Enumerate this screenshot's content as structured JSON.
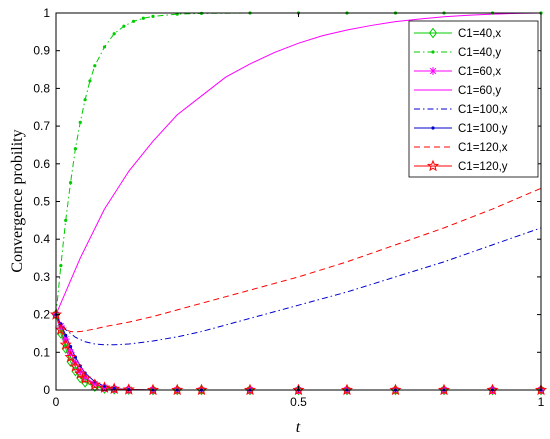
{
  "chart_data": {
    "type": "line",
    "xlabel": "t",
    "ylabel": "Convergence probility",
    "xlim": [
      0,
      1
    ],
    "ylim": [
      0,
      1
    ],
    "xticks": [
      0,
      0.5,
      1
    ],
    "xtick_labels": [
      "0",
      "0.5",
      "1"
    ],
    "yticks": [
      0,
      0.1,
      0.2,
      0.3,
      0.4,
      0.5,
      0.6,
      0.7,
      0.8,
      0.9,
      1
    ],
    "ytick_labels": [
      "0",
      "0.1",
      "0.2",
      "0.3",
      "0.4",
      "0.5",
      "0.6",
      "0.7",
      "0.8",
      "0.9",
      "1"
    ],
    "grid": false,
    "legend_position": "top-right",
    "series": [
      {
        "name": "C1=40,x",
        "color": "#00cc00",
        "dash": "solid",
        "marker": "diamond",
        "x": [
          0,
          0.01,
          0.02,
          0.03,
          0.04,
          0.05,
          0.06,
          0.08,
          0.1,
          0.12,
          0.15,
          0.2,
          0.25,
          0.3,
          0.4,
          0.5,
          0.6,
          0.7,
          0.8,
          0.9,
          1.0
        ],
        "y": [
          0.2,
          0.15,
          0.11,
          0.075,
          0.05,
          0.032,
          0.02,
          0.009,
          0.004,
          0.002,
          0.001,
          0,
          0,
          0,
          0,
          0,
          0,
          0,
          0,
          0,
          0
        ]
      },
      {
        "name": "C1=40,y",
        "color": "#00cc00",
        "dash": "dashdot",
        "marker": "point",
        "x": [
          0,
          0.01,
          0.02,
          0.03,
          0.04,
          0.05,
          0.06,
          0.07,
          0.08,
          0.1,
          0.12,
          0.14,
          0.16,
          0.18,
          0.2,
          0.25,
          0.3,
          0.4,
          0.5,
          0.6,
          0.7,
          0.8,
          0.9,
          1.0
        ],
        "y": [
          0.2,
          0.33,
          0.45,
          0.55,
          0.64,
          0.71,
          0.77,
          0.82,
          0.86,
          0.91,
          0.945,
          0.965,
          0.978,
          0.986,
          0.991,
          0.997,
          0.999,
          1,
          1,
          1,
          1,
          1,
          1,
          1
        ]
      },
      {
        "name": "C1=60,x",
        "color": "#ff00ff",
        "dash": "solid",
        "marker": "asterisk",
        "x": [
          0,
          0.01,
          0.02,
          0.03,
          0.04,
          0.05,
          0.06,
          0.08,
          0.1,
          0.12,
          0.15,
          0.2,
          0.25,
          0.3,
          0.4,
          0.5,
          0.6,
          0.7,
          0.8,
          0.9,
          1.0
        ],
        "y": [
          0.2,
          0.17,
          0.135,
          0.1,
          0.072,
          0.05,
          0.034,
          0.016,
          0.007,
          0.003,
          0.001,
          0,
          0,
          0,
          0,
          0,
          0,
          0,
          0,
          0,
          0
        ]
      },
      {
        "name": "C1=60,y",
        "color": "#ff00ff",
        "dash": "solid",
        "marker": "none",
        "x": [
          0,
          0.02,
          0.05,
          0.1,
          0.15,
          0.2,
          0.25,
          0.3,
          0.35,
          0.4,
          0.45,
          0.5,
          0.55,
          0.6,
          0.65,
          0.7,
          0.75,
          0.8,
          0.85,
          0.9,
          0.95,
          1.0
        ],
        "y": [
          0.2,
          0.26,
          0.35,
          0.48,
          0.58,
          0.66,
          0.73,
          0.78,
          0.83,
          0.865,
          0.895,
          0.92,
          0.94,
          0.955,
          0.967,
          0.977,
          0.984,
          0.99,
          0.994,
          0.997,
          0.999,
          1.0
        ]
      },
      {
        "name": "C1=100,x",
        "color": "#0000cc",
        "dash": "dashdot",
        "marker": "none",
        "x": [
          0,
          0.02,
          0.04,
          0.06,
          0.08,
          0.1,
          0.12,
          0.15,
          0.2,
          0.25,
          0.3,
          0.4,
          0.5,
          0.6,
          0.7,
          0.8,
          0.9,
          1.0
        ],
        "y": [
          0.2,
          0.16,
          0.14,
          0.128,
          0.122,
          0.12,
          0.12,
          0.122,
          0.13,
          0.141,
          0.155,
          0.19,
          0.225,
          0.26,
          0.3,
          0.34,
          0.385,
          0.43
        ]
      },
      {
        "name": "C1=100,y",
        "color": "#0000cc",
        "dash": "solid",
        "marker": "point",
        "x": [
          0,
          0.01,
          0.02,
          0.03,
          0.04,
          0.05,
          0.06,
          0.08,
          0.1,
          0.12,
          0.15,
          0.2,
          0.25,
          0.3,
          0.4,
          0.5,
          0.6,
          0.7,
          0.8,
          0.9,
          1.0
        ],
        "y": [
          0.2,
          0.175,
          0.145,
          0.115,
          0.087,
          0.064,
          0.045,
          0.022,
          0.01,
          0.004,
          0.001,
          0,
          0,
          0,
          0,
          0,
          0,
          0,
          0,
          0,
          0
        ]
      },
      {
        "name": "C1=120,x",
        "color": "#ff0000",
        "dash": "dashed",
        "marker": "none",
        "x": [
          0,
          0.01,
          0.02,
          0.03,
          0.04,
          0.05,
          0.06,
          0.08,
          0.1,
          0.15,
          0.2,
          0.3,
          0.4,
          0.5,
          0.6,
          0.7,
          0.8,
          0.9,
          1.0
        ],
        "y": [
          0.2,
          0.172,
          0.16,
          0.155,
          0.154,
          0.155,
          0.157,
          0.162,
          0.168,
          0.18,
          0.195,
          0.23,
          0.265,
          0.3,
          0.34,
          0.385,
          0.43,
          0.48,
          0.535
        ]
      },
      {
        "name": "C1=120,y",
        "color": "#ff0000",
        "dash": "solid",
        "marker": "star",
        "x": [
          0,
          0.01,
          0.02,
          0.03,
          0.04,
          0.05,
          0.06,
          0.08,
          0.1,
          0.12,
          0.15,
          0.2,
          0.25,
          0.3,
          0.4,
          0.5,
          0.6,
          0.7,
          0.8,
          0.9,
          1.0
        ],
        "y": [
          0.2,
          0.16,
          0.12,
          0.087,
          0.062,
          0.043,
          0.03,
          0.014,
          0.006,
          0.003,
          0.001,
          0,
          0,
          0,
          0,
          0,
          0,
          0,
          0,
          0,
          0
        ]
      }
    ]
  }
}
